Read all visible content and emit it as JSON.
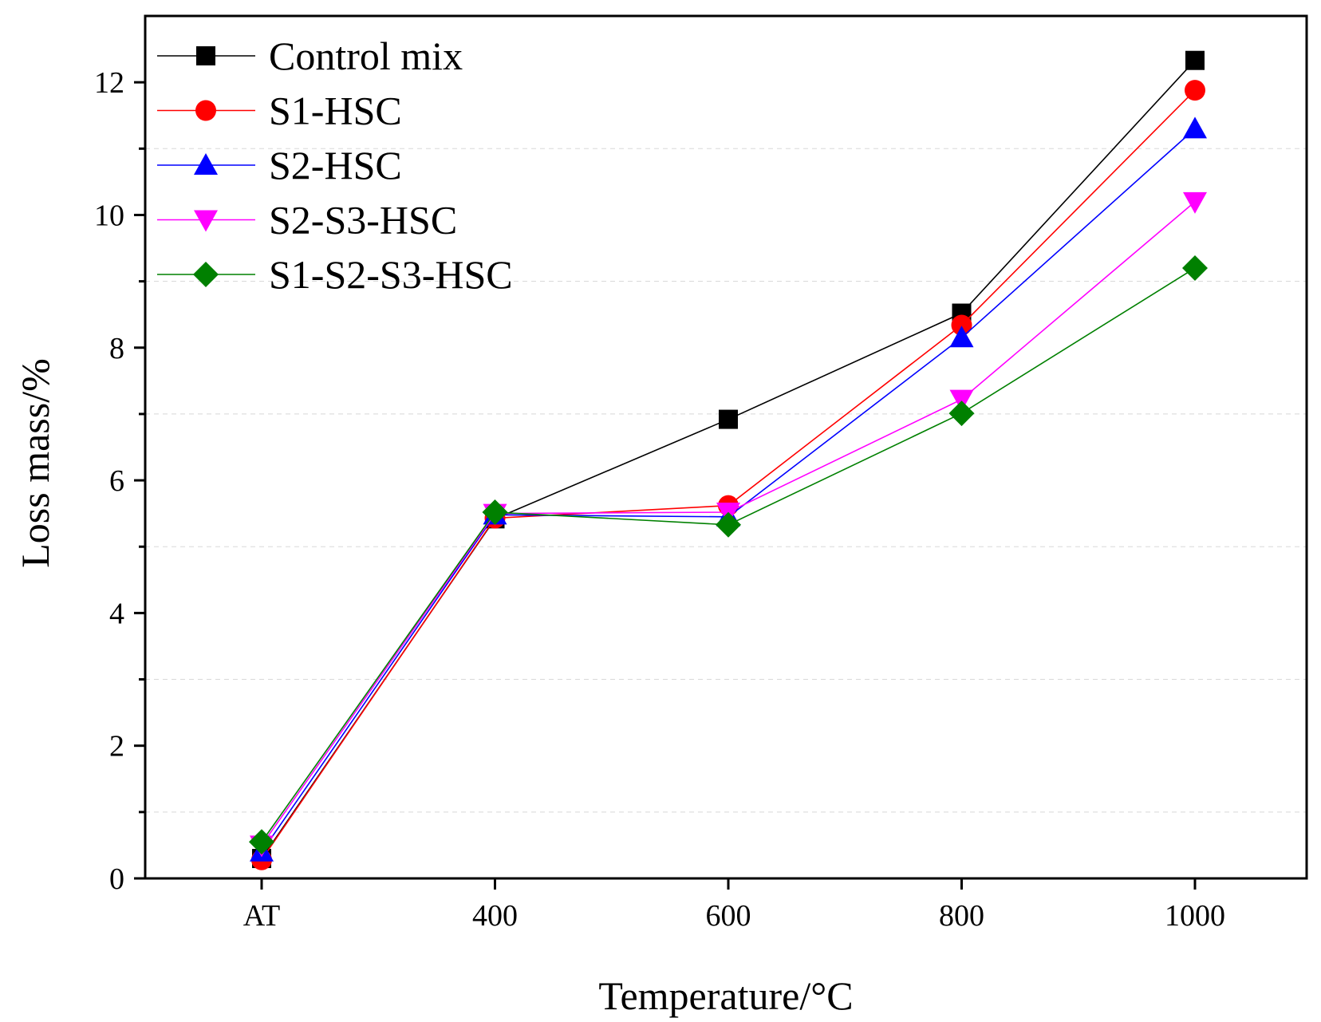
{
  "chart_data": {
    "type": "line",
    "title": "",
    "xlabel": "Temperature/°C",
    "ylabel": "Loss mass/%",
    "categories": [
      "AT",
      "400",
      "600",
      "800",
      "1000"
    ],
    "ylim": [
      0,
      13
    ],
    "yticks": [
      0,
      2,
      4,
      6,
      8,
      10,
      12
    ],
    "grid": "minor-horizontal-dashed",
    "legend_position": "top-left",
    "series": [
      {
        "name": "Control mix",
        "color": "#000000",
        "marker": "square",
        "values": [
          0.3,
          5.42,
          6.92,
          8.52,
          12.33
        ]
      },
      {
        "name": "S1-HSC",
        "color": "#ff0000",
        "marker": "circle",
        "values": [
          0.28,
          5.43,
          5.62,
          8.34,
          11.88
        ]
      },
      {
        "name": "S2-HSC",
        "color": "#0000ff",
        "marker": "triangle-up",
        "values": [
          0.4,
          5.48,
          5.45,
          8.15,
          11.3
        ]
      },
      {
        "name": "S2-S3-HSC",
        "color": "#ff00ff",
        "marker": "triangle-down",
        "values": [
          0.5,
          5.5,
          5.52,
          7.22,
          10.2
        ]
      },
      {
        "name": "S1-S2-S3-HSC",
        "color": "#008000",
        "marker": "diamond",
        "values": [
          0.55,
          5.52,
          5.33,
          7.01,
          9.2
        ]
      }
    ]
  }
}
